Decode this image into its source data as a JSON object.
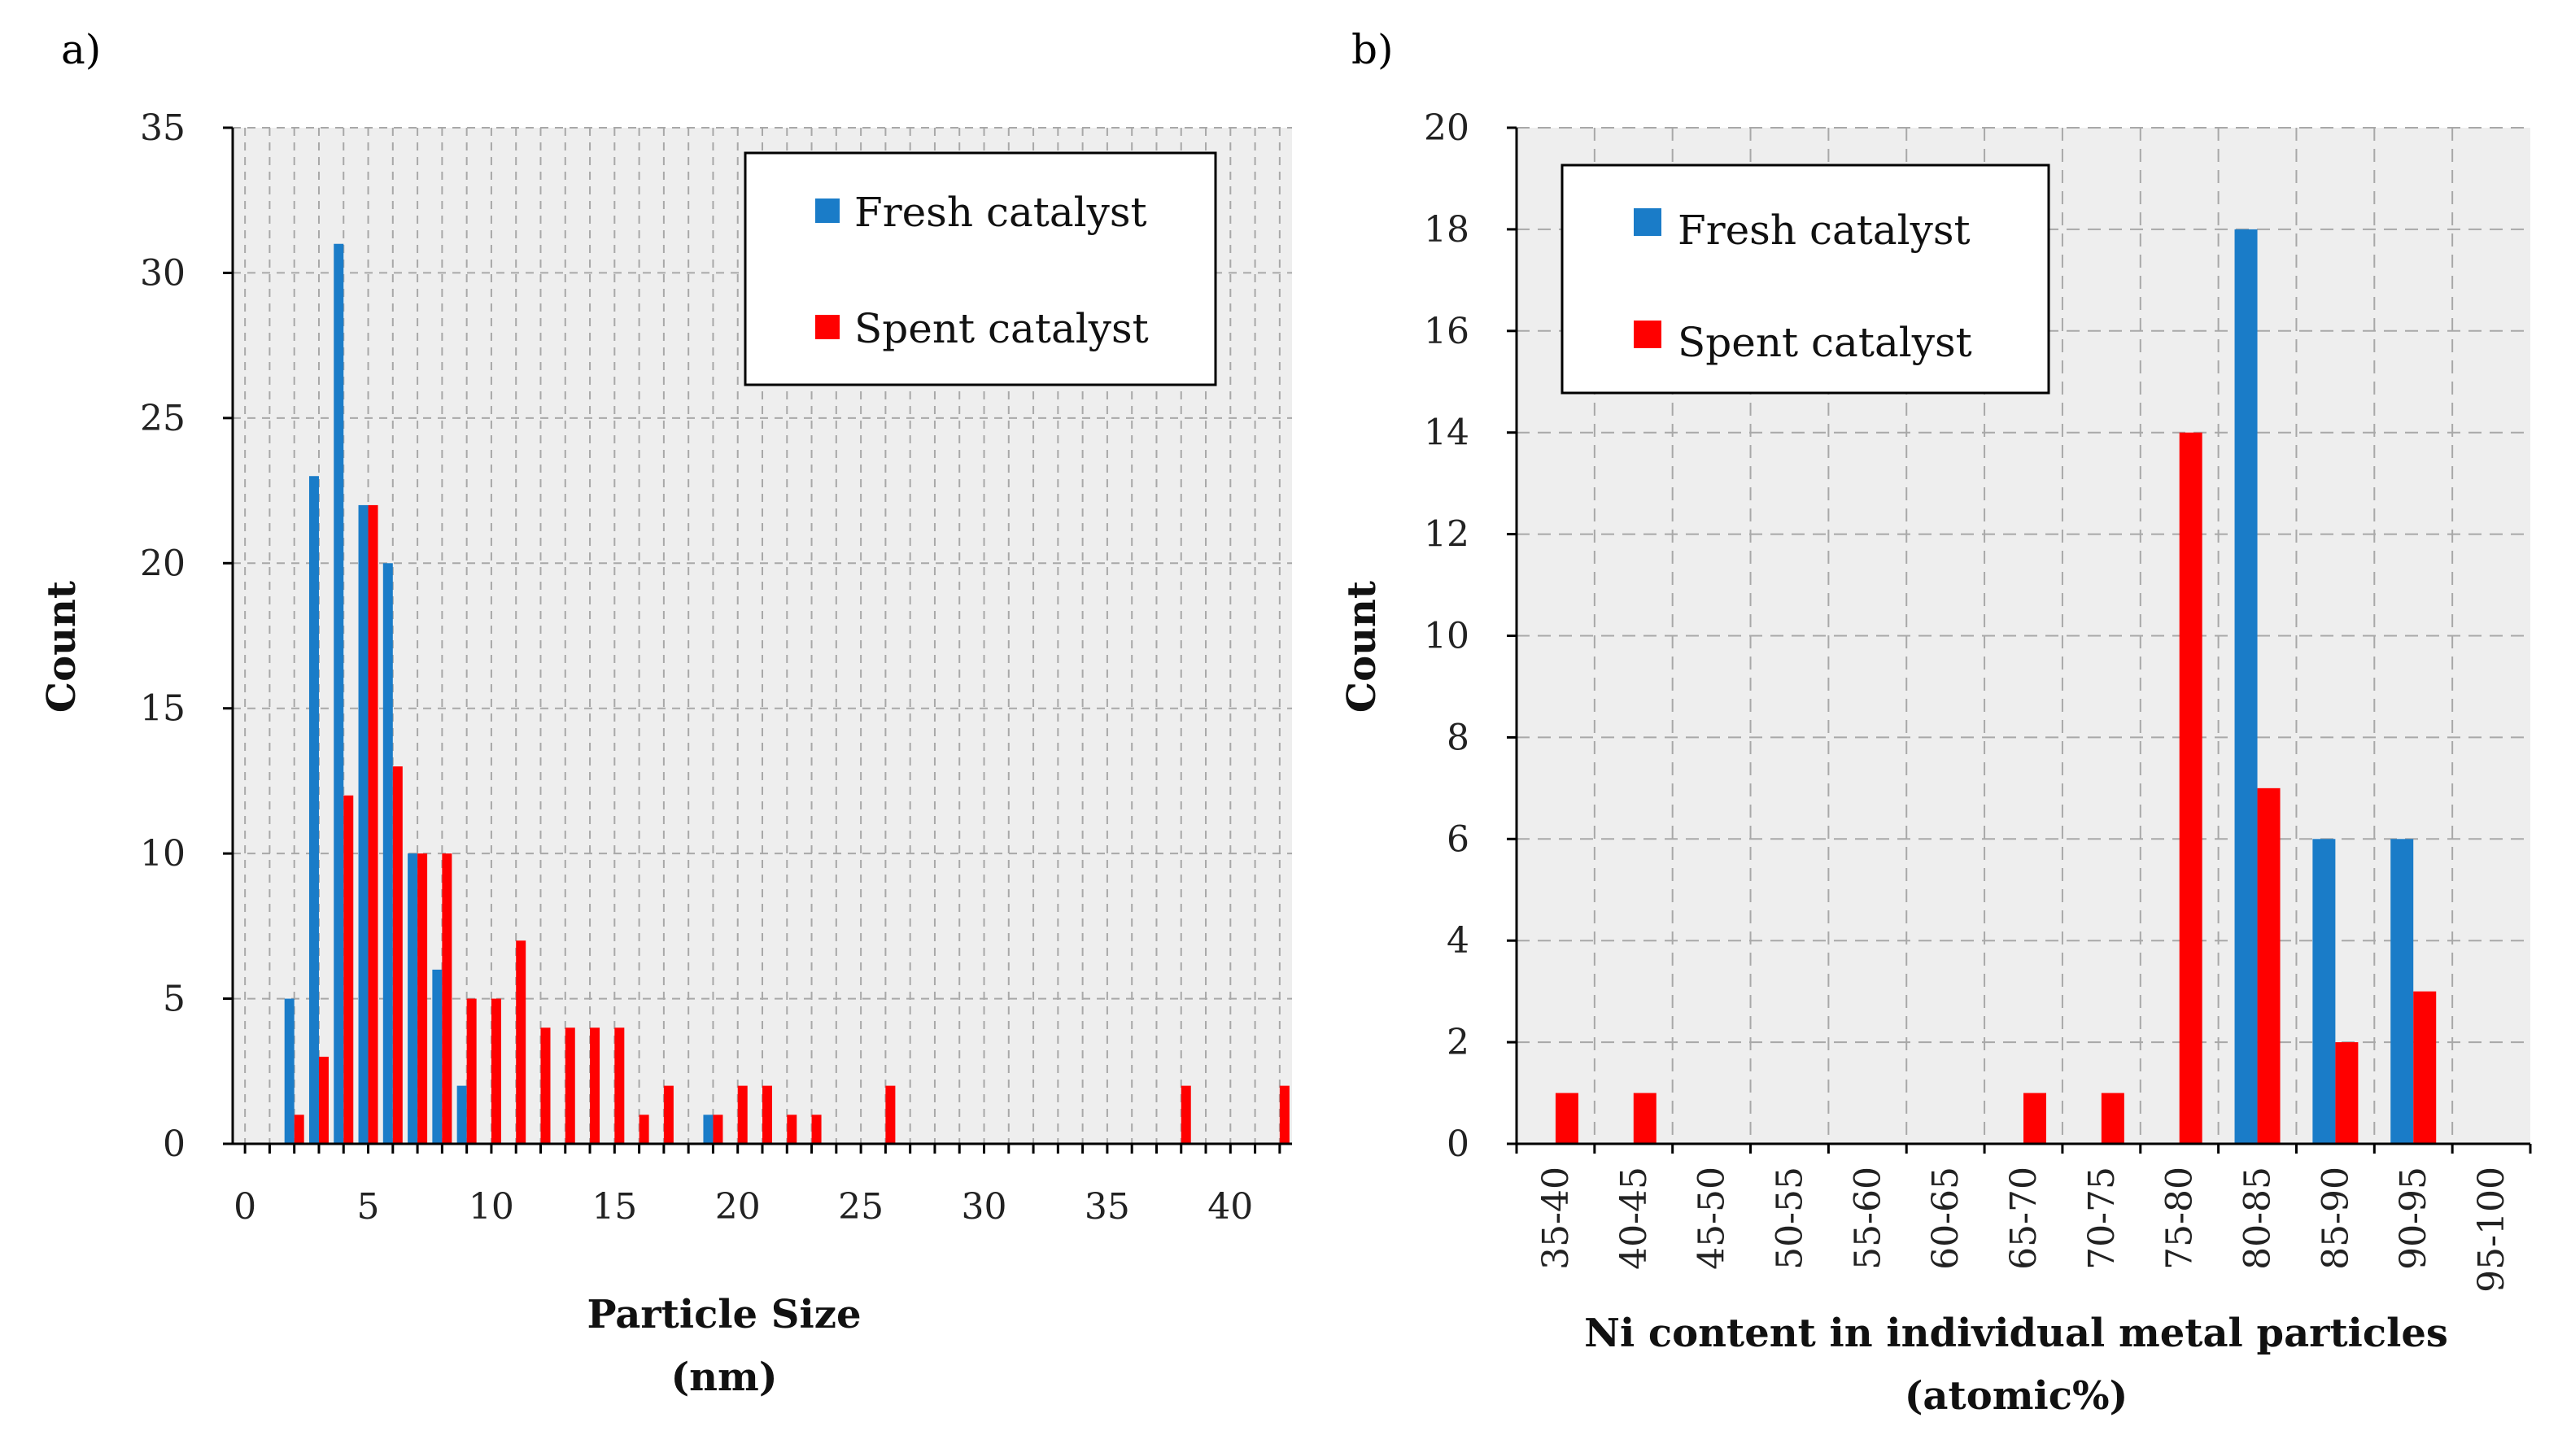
{
  "colors": {
    "fresh": "#1a7cc8",
    "spent": "#ff0000",
    "plot_bg": "#eeeeee",
    "grid": "#a8a8a8"
  },
  "chart_data": [
    {
      "type": "bar",
      "panel": "a)",
      "xlabel": "Particle Size",
      "xlabel2": "(nm)",
      "ylabel": "Count",
      "xlim": [
        -0.5,
        42.5
      ],
      "ylim": [
        0,
        35
      ],
      "xticks": [
        "0",
        "5",
        "10",
        "15",
        "20",
        "25",
        "30",
        "35",
        "40"
      ],
      "yticks": [
        "0",
        "5",
        "10",
        "15",
        "20",
        "25",
        "30",
        "35"
      ],
      "grid": true,
      "legend_position": "top-right",
      "series": [
        {
          "name": "Fresh catalyst",
          "x": [
            2,
            3,
            4,
            5,
            6,
            7,
            8,
            9,
            19
          ],
          "values": [
            5,
            23,
            31,
            22,
            20,
            10,
            6,
            2,
            1
          ]
        },
        {
          "name": "Spent catalyst",
          "x": [
            2,
            3,
            4,
            5,
            6,
            7,
            8,
            9,
            10,
            11,
            12,
            13,
            14,
            15,
            16,
            17,
            19,
            20,
            21,
            22,
            23,
            26,
            38,
            42
          ],
          "values": [
            1,
            3,
            12,
            22,
            13,
            10,
            10,
            5,
            5,
            7,
            4,
            4,
            4,
            4,
            1,
            2,
            1,
            2,
            2,
            1,
            1,
            2,
            2,
            2
          ]
        }
      ]
    },
    {
      "type": "bar",
      "panel": "b)",
      "xlabel": "Ni content in individual metal particles",
      "xlabel2": "(atomic%)",
      "ylabel": "Count",
      "ylim": [
        0,
        20
      ],
      "yticks": [
        "0",
        "2",
        "4",
        "6",
        "8",
        "10",
        "12",
        "14",
        "16",
        "18",
        "20"
      ],
      "grid": true,
      "legend_position": "top-left",
      "categories": [
        "35-40",
        "40-45",
        "45-50",
        "50-55",
        "55-60",
        "60-65",
        "65-70",
        "70-75",
        "75-80",
        "80-85",
        "85-90",
        "90-95",
        "95-100"
      ],
      "series": [
        {
          "name": "Fresh catalyst",
          "values": [
            0,
            0,
            0,
            0,
            0,
            0,
            0,
            0,
            0,
            18,
            6,
            6,
            0
          ]
        },
        {
          "name": "Spent catalyst",
          "values": [
            1,
            1,
            0,
            0,
            0,
            0,
            1,
            1,
            14,
            7,
            2,
            3,
            0
          ]
        }
      ]
    }
  ]
}
